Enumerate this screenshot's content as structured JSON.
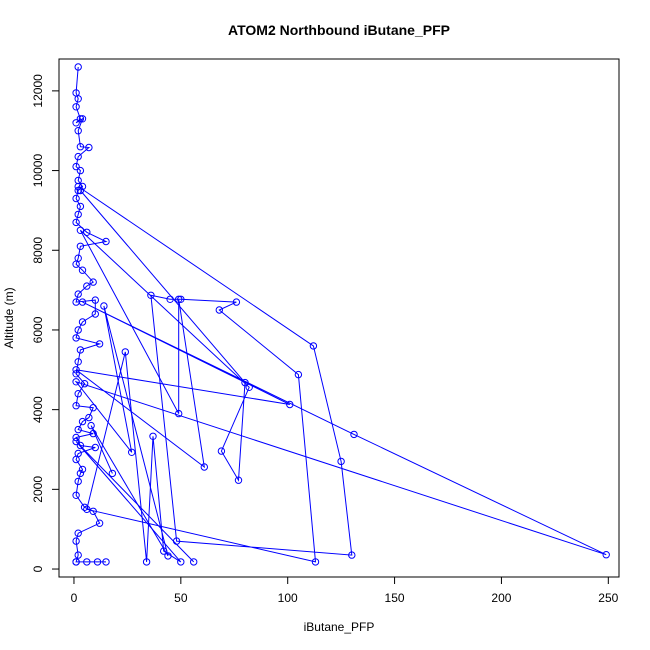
{
  "chart_data": {
    "type": "line",
    "title": "ATOM2 Northbound iButane_PFP",
    "xlabel": "iButane_PFP",
    "ylabel": "Altitude (m)",
    "xlim": [
      -7,
      255
    ],
    "ylim": [
      -200,
      12800
    ],
    "xticks": [
      0,
      50,
      100,
      150,
      200,
      250
    ],
    "yticks": [
      0,
      2000,
      4000,
      6000,
      8000,
      10000,
      12000
    ],
    "grid": false,
    "series_color": "#0000ff",
    "marker": "open-circle",
    "series": [
      {
        "name": "",
        "points": [
          [
            2,
            12600
          ],
          [
            1,
            11950
          ],
          [
            2,
            11800
          ],
          [
            1,
            11600
          ],
          [
            3,
            11300
          ],
          [
            1,
            11200
          ],
          [
            4,
            11300
          ],
          [
            2,
            11000
          ],
          [
            3,
            10600
          ],
          [
            7,
            10580
          ],
          [
            2,
            10350
          ],
          [
            1,
            10100
          ],
          [
            3,
            10000
          ],
          [
            2,
            9750
          ],
          [
            4,
            9600
          ],
          [
            2,
            9500
          ],
          [
            1,
            9300
          ],
          [
            3,
            9100
          ],
          [
            2,
            8900
          ],
          [
            1,
            8700
          ],
          [
            6,
            8450
          ],
          [
            15,
            8220
          ],
          [
            3,
            8100
          ],
          [
            2,
            7800
          ],
          [
            1,
            7650
          ],
          [
            4,
            7500
          ],
          [
            9,
            7200
          ],
          [
            6,
            7100
          ],
          [
            2,
            6900
          ],
          [
            1,
            6700
          ],
          [
            10,
            6750
          ],
          [
            10,
            6400
          ],
          [
            4,
            6200
          ],
          [
            2,
            6000
          ],
          [
            1,
            5800
          ],
          [
            12,
            5650
          ],
          [
            3,
            5500
          ],
          [
            2,
            5200
          ],
          [
            1,
            4900
          ],
          [
            5,
            4650
          ],
          [
            2,
            4400
          ],
          [
            1,
            4100
          ],
          [
            9,
            4050
          ],
          [
            7,
            3800
          ],
          [
            4,
            3700
          ],
          [
            2,
            3500
          ],
          [
            9,
            3400
          ],
          [
            1,
            3300
          ],
          [
            3,
            3100
          ],
          [
            10,
            3050
          ],
          [
            2,
            2900
          ],
          [
            1,
            2750
          ],
          [
            4,
            2500
          ],
          [
            3,
            2400
          ],
          [
            2,
            2200
          ],
          [
            1,
            1850
          ],
          [
            5,
            1550
          ],
          [
            9,
            1450
          ],
          [
            12,
            1150
          ],
          [
            2,
            900
          ],
          [
            1,
            700
          ],
          [
            2,
            350
          ],
          [
            1,
            180
          ],
          [
            6,
            180
          ],
          [
            11,
            180
          ],
          [
            15,
            180
          ],
          [
            1,
            180
          ]
        ]
      },
      {
        "name": "",
        "points": [
          [
            2,
            9600
          ],
          [
            112,
            5600
          ],
          [
            125,
            2700
          ],
          [
            130,
            350
          ],
          [
            48,
            700
          ],
          [
            36,
            6870
          ],
          [
            45,
            6770
          ],
          [
            50,
            6770
          ],
          [
            76,
            6700
          ],
          [
            68,
            6500
          ],
          [
            105,
            4880
          ],
          [
            113,
            180
          ],
          [
            6,
            1500
          ],
          [
            24,
            5450
          ],
          [
            34,
            180
          ],
          [
            37,
            3330
          ],
          [
            42,
            450
          ],
          [
            50,
            180
          ],
          [
            1,
            3200
          ],
          [
            56,
            180
          ]
        ]
      },
      {
        "name": "",
        "points": [
          [
            3,
            9500
          ],
          [
            80,
            4680
          ],
          [
            77,
            2230
          ],
          [
            69,
            2960
          ],
          [
            82,
            4560
          ],
          [
            3,
            8500
          ],
          [
            49,
            3900
          ],
          [
            49,
            6770
          ],
          [
            61,
            2560
          ],
          [
            1,
            5000
          ],
          [
            101,
            4130
          ],
          [
            4,
            6700
          ],
          [
            131,
            3380
          ],
          [
            249,
            360
          ],
          [
            1,
            4700
          ],
          [
            27,
            2930
          ],
          [
            14,
            6600
          ],
          [
            44,
            330
          ],
          [
            8,
            3600
          ],
          [
            18,
            2400
          ]
        ]
      }
    ]
  }
}
